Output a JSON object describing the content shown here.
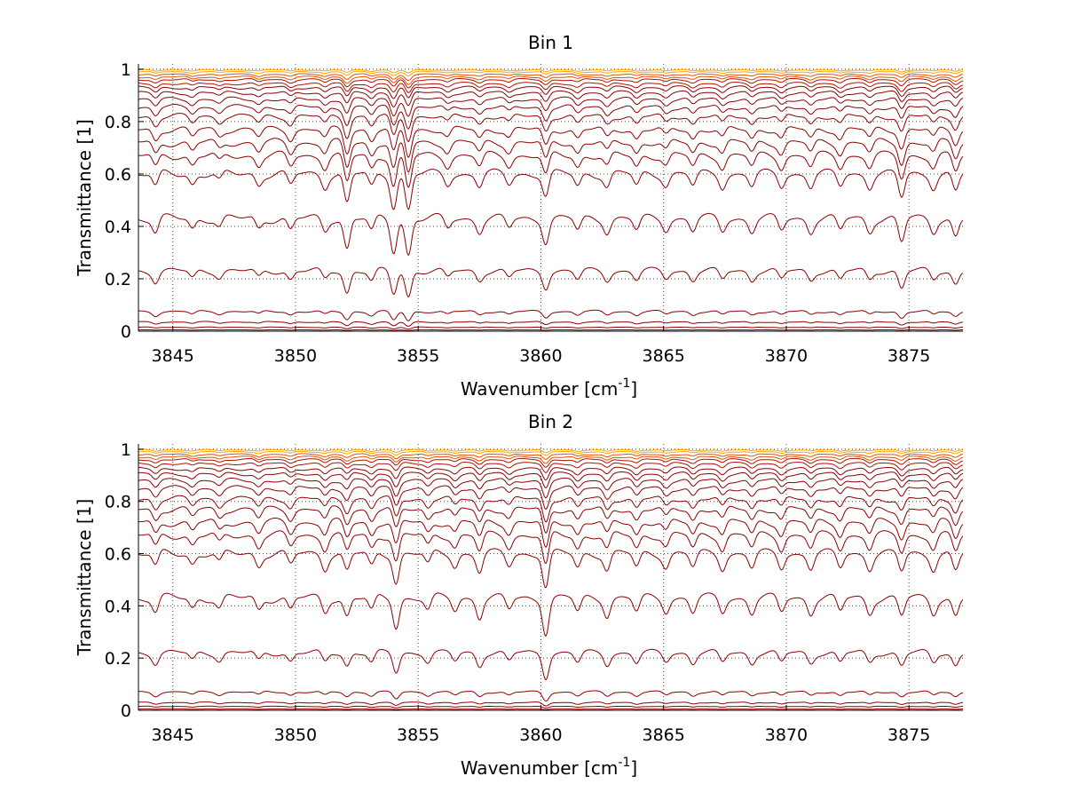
{
  "chart_data": [
    {
      "type": "line",
      "title": "Bin 1",
      "xlabel_main": "Wavenumber [cm",
      "xlabel_sup": "-1",
      "xlabel_tail": "]",
      "ylabel": "Transmittance [1]",
      "xlim": [
        3843.6,
        3877.2
      ],
      "ylim": [
        0,
        1.02
      ],
      "xticks": [
        3845,
        3850,
        3855,
        3860,
        3865,
        3870,
        3875
      ],
      "yticks": [
        0,
        0.2,
        0.4,
        0.6,
        0.8,
        1
      ],
      "ytick_labels": [
        "0",
        "0.2",
        "0.4",
        "0.6",
        "0.8",
        "1"
      ],
      "grid": true,
      "series_baselines": [
        0.005,
        0.015,
        0.035,
        0.075,
        0.23,
        0.43,
        0.6,
        0.67,
        0.72,
        0.77,
        0.82,
        0.855,
        0.885,
        0.91,
        0.93,
        0.945,
        0.96,
        0.97,
        0.98,
        0.99,
        0.997
      ],
      "absorption_lines": [
        {
          "x": 3844.3,
          "depth": 0.35
        },
        {
          "x": 3845.8,
          "depth": 0.25
        },
        {
          "x": 3846.9,
          "depth": 0.2
        },
        {
          "x": 3848.5,
          "depth": 0.25
        },
        {
          "x": 3849.8,
          "depth": 0.3
        },
        {
          "x": 3851.2,
          "depth": 0.3
        },
        {
          "x": 3852.1,
          "depth": 0.75
        },
        {
          "x": 3853.1,
          "depth": 0.35
        },
        {
          "x": 3854.0,
          "depth": 0.8
        },
        {
          "x": 3854.6,
          "depth": 0.9
        },
        {
          "x": 3856.2,
          "depth": 0.25
        },
        {
          "x": 3857.5,
          "depth": 0.3
        },
        {
          "x": 3858.7,
          "depth": 0.25
        },
        {
          "x": 3860.2,
          "depth": 0.55
        },
        {
          "x": 3861.5,
          "depth": 0.3
        },
        {
          "x": 3862.7,
          "depth": 0.3
        },
        {
          "x": 3863.9,
          "depth": 0.3
        },
        {
          "x": 3865.1,
          "depth": 0.25
        },
        {
          "x": 3866.2,
          "depth": 0.3
        },
        {
          "x": 3867.4,
          "depth": 0.3
        },
        {
          "x": 3868.6,
          "depth": 0.3
        },
        {
          "x": 3869.8,
          "depth": 0.3
        },
        {
          "x": 3871.0,
          "depth": 0.3
        },
        {
          "x": 3872.2,
          "depth": 0.3
        },
        {
          "x": 3873.4,
          "depth": 0.3
        },
        {
          "x": 3874.7,
          "depth": 0.6
        },
        {
          "x": 3876.0,
          "depth": 0.3
        },
        {
          "x": 3876.9,
          "depth": 0.45
        }
      ]
    },
    {
      "type": "line",
      "title": "Bin 2",
      "xlabel_main": "Wavenumber [cm",
      "xlabel_sup": "-1",
      "xlabel_tail": "]",
      "ylabel": "Transmittance [1]",
      "xlim": [
        3843.6,
        3877.2
      ],
      "ylim": [
        0,
        1.02
      ],
      "xticks": [
        3845,
        3850,
        3855,
        3860,
        3865,
        3870,
        3875
      ],
      "yticks": [
        0,
        0.2,
        0.4,
        0.6,
        0.8,
        1
      ],
      "ytick_labels": [
        "0",
        "0.2",
        "0.4",
        "0.6",
        "0.8",
        "1"
      ],
      "grid": true,
      "series_baselines": [
        0.005,
        0.015,
        0.03,
        0.07,
        0.22,
        0.43,
        0.6,
        0.67,
        0.72,
        0.77,
        0.81,
        0.85,
        0.88,
        0.905,
        0.925,
        0.945,
        0.96,
        0.97,
        0.98,
        0.99,
        0.997
      ],
      "absorption_lines": [
        {
          "x": 3844.3,
          "depth": 0.35
        },
        {
          "x": 3845.8,
          "depth": 0.25
        },
        {
          "x": 3846.9,
          "depth": 0.25
        },
        {
          "x": 3848.5,
          "depth": 0.3
        },
        {
          "x": 3849.8,
          "depth": 0.3
        },
        {
          "x": 3851.2,
          "depth": 0.35
        },
        {
          "x": 3852.1,
          "depth": 0.45
        },
        {
          "x": 3853.1,
          "depth": 0.35
        },
        {
          "x": 3854.1,
          "depth": 0.7
        },
        {
          "x": 3855.4,
          "depth": 0.3
        },
        {
          "x": 3856.5,
          "depth": 0.3
        },
        {
          "x": 3857.5,
          "depth": 0.45
        },
        {
          "x": 3858.7,
          "depth": 0.3
        },
        {
          "x": 3860.2,
          "depth": 0.85
        },
        {
          "x": 3861.5,
          "depth": 0.35
        },
        {
          "x": 3862.7,
          "depth": 0.4
        },
        {
          "x": 3863.9,
          "depth": 0.35
        },
        {
          "x": 3865.1,
          "depth": 0.3
        },
        {
          "x": 3866.2,
          "depth": 0.35
        },
        {
          "x": 3867.4,
          "depth": 0.35
        },
        {
          "x": 3868.6,
          "depth": 0.35
        },
        {
          "x": 3869.8,
          "depth": 0.35
        },
        {
          "x": 3871.0,
          "depth": 0.35
        },
        {
          "x": 3872.2,
          "depth": 0.35
        },
        {
          "x": 3873.4,
          "depth": 0.35
        },
        {
          "x": 3874.7,
          "depth": 0.45
        },
        {
          "x": 3876.0,
          "depth": 0.35
        },
        {
          "x": 3876.9,
          "depth": 0.45
        }
      ]
    }
  ],
  "colors": {
    "low_series": "#8b0000",
    "mid_series": "#b01000",
    "high_series": "#e85000",
    "top_series": "#ffa500",
    "grid": "#000000",
    "axes": "#000000"
  }
}
